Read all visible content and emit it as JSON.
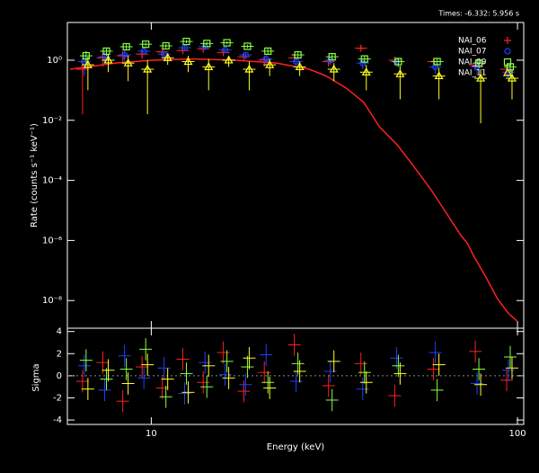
{
  "chart_data": [
    {
      "type": "scatter",
      "title": "Times: -6.332: 5.956 s",
      "ylabel": "Rate (counts s⁻¹ keV⁻¹)",
      "xscale": "log",
      "yscale": "log",
      "xlim": [
        5.9,
        104
      ],
      "ylim": [
        1.2e-09,
        18
      ],
      "yticks": [
        {
          "value": 1,
          "label": "10⁰"
        },
        {
          "value": 0.01,
          "label": "10⁻²"
        },
        {
          "value": 0.0001,
          "label": "10⁻⁴"
        },
        {
          "value": 1e-06,
          "label": "10⁻⁶"
        },
        {
          "value": 1e-08,
          "label": "10⁻⁸"
        }
      ],
      "x": [
        6.6,
        7.5,
        8.5,
        9.6,
        10.9,
        12.4,
        14.1,
        16,
        18.2,
        20.7,
        25,
        31,
        38,
        47,
        60,
        78,
        95
      ],
      "errors": [
        0.6,
        0.6,
        0.6,
        0.5,
        0.5,
        0.5,
        0.5,
        0.4,
        0.4,
        0.4,
        0.3,
        0.3,
        0.3,
        0.3,
        0.25,
        0.25,
        0.2
      ],
      "legend": "upper right",
      "series": [
        {
          "name": "NAI_06",
          "color": "#ff2020",
          "marker": "plus",
          "values": [
            0.5,
            1.2,
            1.4,
            1.6,
            1.9,
            2.1,
            2.4,
            1.8,
            1.3,
            1.0,
            1.2,
            0.9,
            2.5,
            1.0,
            0.9,
            0.7,
            0.5
          ]
        },
        {
          "name": "NAI_07",
          "color": "#2040ff",
          "marker": "circle",
          "values": [
            0.9,
            1.3,
            1.5,
            2.0,
            1.6,
            2.6,
            2.8,
            2.2,
            1.5,
            1.1,
            0.9,
            1.0,
            0.8,
            0.9,
            0.6,
            0.6,
            0.4
          ]
        },
        {
          "name": "NAI_09",
          "color": "#88ff44",
          "marker": "square",
          "values": [
            1.4,
            2.0,
            2.8,
            3.4,
            3.0,
            4.2,
            3.6,
            3.8,
            2.9,
            2.0,
            1.5,
            1.3,
            1.1,
            0.9,
            0.9,
            0.8,
            0.6
          ]
        },
        {
          "name": "NAI_11",
          "color": "#ffff20",
          "marker": "triangle",
          "values": [
            0.7,
            1.0,
            0.8,
            0.5,
            1.2,
            0.9,
            0.6,
            1.0,
            0.5,
            0.7,
            0.6,
            0.5,
            0.4,
            0.35,
            0.3,
            0.25,
            0.25
          ]
        }
      ],
      "model": {
        "color": "#ff2020",
        "x": [
          6,
          8,
          10,
          13,
          17,
          22,
          27,
          30,
          34,
          38,
          42,
          47,
          52,
          58,
          64,
          70,
          73,
          76,
          82,
          88,
          94,
          100
        ],
        "values": [
          0.5,
          0.8,
          1.0,
          1.1,
          1.0,
          0.8,
          0.5,
          0.3,
          0.12,
          0.04,
          0.006,
          0.0015,
          0.0003,
          5e-05,
          8e-06,
          1.5e-06,
          8e-07,
          3e-07,
          6e-08,
          1.2e-08,
          4e-09,
          2e-09
        ]
      }
    },
    {
      "type": "scatter",
      "xlabel": "Energy (keV)",
      "ylabel": "Sigma",
      "xscale": "log",
      "xlim": [
        5.9,
        104
      ],
      "ylim": [
        -4.4,
        4.3
      ],
      "xticks": [
        10,
        100
      ],
      "yticks": [
        -4,
        -2,
        0,
        2,
        4
      ],
      "x": [
        6.6,
        7.5,
        8.5,
        9.6,
        10.9,
        12.4,
        14.1,
        16,
        18.2,
        20.7,
        25,
        31,
        38,
        47,
        60,
        78,
        95
      ],
      "errors": [
        1,
        1,
        1,
        1,
        1,
        1,
        1,
        1,
        1,
        1,
        1,
        1,
        1,
        1,
        1,
        1,
        1
      ],
      "series": [
        {
          "color": "#ff2020",
          "values": [
            -0.5,
            1.2,
            -2.3,
            0.8,
            -1.1,
            1.5,
            -0.6,
            2.1,
            -1.4,
            0.3,
            2.8,
            -0.9,
            1.1,
            -1.8,
            0.6,
            2.2,
            -0.4
          ]
        },
        {
          "color": "#2040ff",
          "values": [
            0.9,
            -1.3,
            1.8,
            -0.2,
            0.7,
            -1.6,
            1.2,
            0.1,
            -0.8,
            1.9,
            -0.5,
            0.4,
            -1.2,
            1.6,
            2.1,
            -0.7,
            0.5
          ]
        },
        {
          "color": "#88ff44",
          "values": [
            1.4,
            -0.3,
            0.6,
            2.4,
            -1.9,
            0.2,
            -1.0,
            1.3,
            0.8,
            -0.6,
            1.1,
            -2.2,
            0.3,
            0.9,
            -1.3,
            0.6,
            1.7
          ]
        },
        {
          "color": "#ffff20",
          "values": [
            -1.2,
            0.5,
            -0.7,
            1.0,
            -0.3,
            -1.5,
            0.9,
            -0.2,
            1.6,
            -1.1,
            0.4,
            1.3,
            -0.6,
            0.2,
            1.0,
            -0.8,
            0.7
          ]
        }
      ]
    }
  ]
}
